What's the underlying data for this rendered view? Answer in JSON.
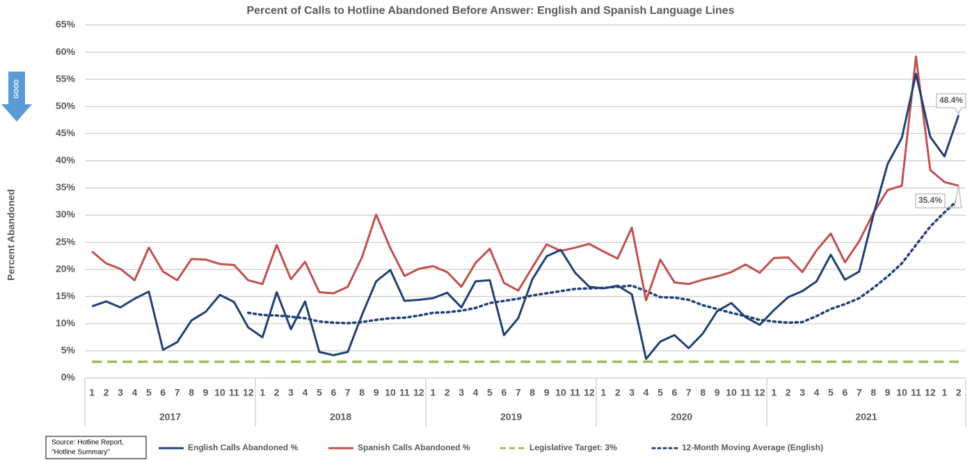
{
  "chart_data": {
    "type": "line",
    "title": "Percent of Calls to Hotline Abandoned Before Answer: English and Spanish Language Lines",
    "y_label": "Percent Abandoned",
    "indicator": "GOOD",
    "source": [
      "Source: Hotline Report,",
      "\"Hotline Summary\""
    ],
    "categories": [
      "1",
      "2",
      "3",
      "4",
      "5",
      "6",
      "7",
      "8",
      "9",
      "10",
      "11",
      "12",
      "1",
      "2",
      "3",
      "4",
      "5",
      "6",
      "7",
      "8",
      "9",
      "10",
      "11",
      "12",
      "1",
      "2",
      "3",
      "4",
      "5",
      "6",
      "7",
      "8",
      "9",
      "10",
      "11",
      "12",
      "1",
      "2",
      "3",
      "4",
      "5",
      "6",
      "7",
      "8",
      "9",
      "10",
      "11",
      "12",
      "1",
      "2",
      "3",
      "4",
      "5",
      "6",
      "7",
      "8",
      "9",
      "10",
      "11",
      "12",
      "1",
      "2"
    ],
    "year_groups": [
      {
        "label": "2017",
        "first": 0,
        "last": 11
      },
      {
        "label": "2018",
        "first": 12,
        "last": 23
      },
      {
        "label": "2019",
        "first": 24,
        "last": 35
      },
      {
        "label": "2020",
        "first": 36,
        "last": 47
      },
      {
        "label": "2021",
        "first": 48,
        "last": 61
      }
    ],
    "ylim": [
      0,
      65
    ],
    "yticks": [
      {
        "value": 0,
        "label": "0%"
      },
      {
        "value": 5,
        "label": "5%"
      },
      {
        "value": 10,
        "label": "10%"
      },
      {
        "value": 15,
        "label": "15%"
      },
      {
        "value": 20,
        "label": "20%"
      },
      {
        "value": 25,
        "label": "25%"
      },
      {
        "value": 30,
        "label": "30%"
      },
      {
        "value": 35,
        "label": "35%"
      },
      {
        "value": 40,
        "label": "40%"
      },
      {
        "value": 45,
        "label": "45%"
      },
      {
        "value": 50,
        "label": "50%"
      },
      {
        "value": 55,
        "label": "55%"
      },
      {
        "value": 60,
        "label": "60%"
      },
      {
        "value": 65,
        "label": "65%"
      }
    ],
    "grid": true,
    "series": [
      {
        "name": "English Calls Abandoned %",
        "color": "#1f3f73",
        "style": "solid",
        "values": [
          13.2,
          14.1,
          13.0,
          14.6,
          15.9,
          5.2,
          6.6,
          10.6,
          12.2,
          15.3,
          14.0,
          9.3,
          7.5,
          15.8,
          9.0,
          14.1,
          4.8,
          4.2,
          4.8,
          11.6,
          17.8,
          19.9,
          14.2,
          14.4,
          14.7,
          15.7,
          13.0,
          17.8,
          18.0,
          7.9,
          11.0,
          18.2,
          22.4,
          23.6,
          19.4,
          16.8,
          16.5,
          17.0,
          15.4,
          3.5,
          6.7,
          7.9,
          5.5,
          8.2,
          12.3,
          13.8,
          11.2,
          9.8,
          12.5,
          14.9,
          16.0,
          17.8,
          22.7,
          18.1,
          19.6,
          30.0,
          39.4,
          44.2,
          56.0,
          44.4,
          40.8,
          48.4
        ],
        "value_labels": [
          null,
          null,
          null,
          null,
          null,
          null,
          null,
          null,
          null,
          null,
          null,
          null,
          null,
          null,
          null,
          null,
          null,
          null,
          null,
          null,
          null,
          null,
          null,
          null,
          null,
          null,
          null,
          null,
          null,
          null,
          null,
          null,
          null,
          null,
          null,
          null,
          null,
          null,
          null,
          null,
          null,
          null,
          null,
          null,
          null,
          null,
          null,
          null,
          null,
          null,
          null,
          null,
          null,
          null,
          null,
          null,
          null,
          null,
          null,
          null,
          null,
          "48.4%"
        ]
      },
      {
        "name": "Spanish Calls Abandoned %",
        "color": "#c0504d",
        "style": "solid",
        "values": [
          23.3,
          21.1,
          20.1,
          18.0,
          24.0,
          19.6,
          18.0,
          21.9,
          21.8,
          21.0,
          20.8,
          18.0,
          17.3,
          24.5,
          18.2,
          21.4,
          15.8,
          15.6,
          16.8,
          22.2,
          30.1,
          23.9,
          18.8,
          20.1,
          20.6,
          19.5,
          16.8,
          21.2,
          23.8,
          17.5,
          16.1,
          20.4,
          24.6,
          23.4,
          24.0,
          24.7,
          23.3,
          22.0,
          27.7,
          14.3,
          21.8,
          17.6,
          17.3,
          18.1,
          18.7,
          19.5,
          20.9,
          19.4,
          22.1,
          22.2,
          19.5,
          23.5,
          26.6,
          21.3,
          25.2,
          30.4,
          34.6,
          35.4,
          59.2,
          38.3,
          36.1,
          35.4
        ],
        "value_labels": [
          null,
          null,
          null,
          null,
          null,
          null,
          null,
          null,
          null,
          null,
          null,
          null,
          null,
          null,
          null,
          null,
          null,
          null,
          null,
          null,
          null,
          null,
          null,
          null,
          null,
          null,
          null,
          null,
          null,
          null,
          null,
          null,
          null,
          null,
          null,
          null,
          null,
          null,
          null,
          null,
          null,
          null,
          null,
          null,
          null,
          null,
          null,
          null,
          null,
          null,
          null,
          null,
          null,
          null,
          null,
          null,
          null,
          null,
          null,
          null,
          null,
          "35.4%"
        ]
      },
      {
        "name": "Legislative Target: 3%",
        "color": "#9bbb59",
        "style": "dashed",
        "values": [
          3,
          3,
          3,
          3,
          3,
          3,
          3,
          3,
          3,
          3,
          3,
          3,
          3,
          3,
          3,
          3,
          3,
          3,
          3,
          3,
          3,
          3,
          3,
          3,
          3,
          3,
          3,
          3,
          3,
          3,
          3,
          3,
          3,
          3,
          3,
          3,
          3,
          3,
          3,
          3,
          3,
          3,
          3,
          3,
          3,
          3,
          3,
          3,
          3,
          3,
          3,
          3,
          3,
          3,
          3,
          3,
          3,
          3,
          3,
          3,
          3,
          3
        ]
      },
      {
        "name": "12-Month Moving Average (English)",
        "color": "#1f3f73",
        "style": "dotted",
        "values": [
          null,
          null,
          null,
          null,
          null,
          null,
          null,
          null,
          null,
          null,
          null,
          12.0,
          11.6,
          11.5,
          11.3,
          11.0,
          10.4,
          10.2,
          10.1,
          10.3,
          10.7,
          11.0,
          11.1,
          11.5,
          12.0,
          12.1,
          12.4,
          12.9,
          13.8,
          14.2,
          14.6,
          15.2,
          15.6,
          16.0,
          16.4,
          16.5,
          16.6,
          16.8,
          17.0,
          16.0,
          14.9,
          14.8,
          14.4,
          13.4,
          12.7,
          12.0,
          11.4,
          10.7,
          10.4,
          10.2,
          10.3,
          11.4,
          12.7,
          13.6,
          14.7,
          16.6,
          18.7,
          21.1,
          24.5,
          27.9,
          30.5,
          32.9
        ]
      }
    ]
  }
}
